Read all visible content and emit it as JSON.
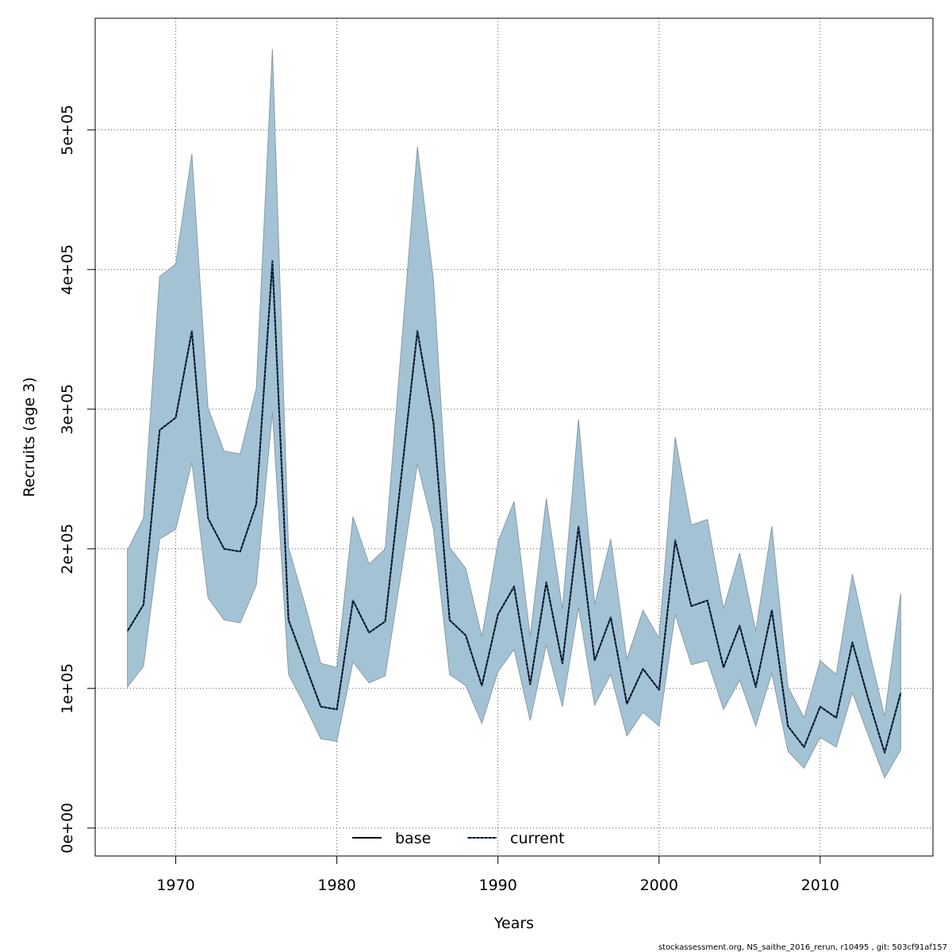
{
  "chart_data": {
    "type": "area",
    "xlabel": "Years",
    "ylabel": "Recruits (age 3)",
    "xlim": [
      1965,
      2017
    ],
    "ylim": [
      -20000,
      580000
    ],
    "grid": true,
    "x_ticks": [
      {
        "value": 1970,
        "label": "1970"
      },
      {
        "value": 1980,
        "label": "1980"
      },
      {
        "value": 1990,
        "label": "1990"
      },
      {
        "value": 2000,
        "label": "2000"
      },
      {
        "value": 2010,
        "label": "2010"
      }
    ],
    "y_ticks": [
      {
        "value": 0,
        "label": "0e+00"
      },
      {
        "value": 100000,
        "label": "1e+05"
      },
      {
        "value": 200000,
        "label": "2e+05"
      },
      {
        "value": 300000,
        "label": "3e+05"
      },
      {
        "value": 400000,
        "label": "4e+05"
      },
      {
        "value": 500000,
        "label": "5e+05"
      }
    ],
    "x": [
      1967,
      1968,
      1969,
      1970,
      1971,
      1972,
      1973,
      1974,
      1975,
      1976,
      1977,
      1978,
      1979,
      1980,
      1981,
      1982,
      1983,
      1984,
      1985,
      1986,
      1987,
      1988,
      1989,
      1990,
      1991,
      1992,
      1993,
      1994,
      1995,
      1996,
      1997,
      1998,
      1999,
      2000,
      2001,
      2002,
      2003,
      2004,
      2005,
      2006,
      2007,
      2008,
      2009,
      2010,
      2011,
      2012,
      2013,
      2014,
      2015
    ],
    "band": {
      "color": "#a3c3d5",
      "lower": [
        101000,
        116000,
        207000,
        214000,
        262000,
        165000,
        149000,
        147000,
        174000,
        298000,
        110000,
        88000,
        64000,
        62000,
        119000,
        104000,
        109000,
        183000,
        261000,
        214000,
        110000,
        102000,
        75000,
        112000,
        128000,
        77000,
        131000,
        87000,
        158000,
        88000,
        110000,
        66000,
        83000,
        73000,
        153000,
        117000,
        120000,
        85000,
        106000,
        73000,
        111000,
        55000,
        43000,
        65000,
        58000,
        97000,
        66000,
        36000,
        56000
      ],
      "upper": [
        199000,
        222000,
        395000,
        404000,
        483000,
        301000,
        270000,
        268000,
        315000,
        558000,
        201000,
        161000,
        118000,
        115000,
        223000,
        189000,
        200000,
        344000,
        488000,
        392000,
        201000,
        186000,
        137000,
        205000,
        234000,
        137000,
        236000,
        157000,
        293000,
        160000,
        207000,
        121000,
        156000,
        136000,
        280000,
        217000,
        221000,
        157000,
        197000,
        141000,
        216000,
        101000,
        79000,
        120000,
        110000,
        182000,
        129000,
        80000,
        168000
      ]
    },
    "series": [
      {
        "name": "base",
        "style": "solid",
        "color": "#000000",
        "values": [
          141000,
          160000,
          285000,
          294000,
          356000,
          222000,
          200000,
          198000,
          232000,
          406000,
          149000,
          118000,
          87000,
          85000,
          163000,
          140000,
          148000,
          252000,
          356000,
          290000,
          149000,
          138000,
          102000,
          153000,
          173000,
          103000,
          176000,
          118000,
          216000,
          120000,
          151000,
          89000,
          114000,
          99000,
          206000,
          159000,
          163000,
          115000,
          145000,
          101000,
          156000,
          73000,
          58000,
          87000,
          79000,
          133000,
          92000,
          54000,
          97000
        ]
      },
      {
        "name": "current",
        "style": "dotted",
        "color": "#2a5b8a",
        "values": [
          141000,
          160000,
          285000,
          294000,
          356000,
          222000,
          200000,
          198000,
          232000,
          406000,
          149000,
          118000,
          87000,
          85000,
          163000,
          140000,
          148000,
          252000,
          356000,
          290000,
          149000,
          138000,
          102000,
          153000,
          173000,
          103000,
          176000,
          118000,
          216000,
          120000,
          151000,
          89000,
          114000,
          99000,
          206000,
          159000,
          163000,
          115000,
          145000,
          101000,
          156000,
          73000,
          58000,
          87000,
          79000,
          133000,
          92000,
          54000,
          97000
        ]
      }
    ],
    "legend": {
      "position": "bottom-center"
    }
  },
  "footer": {
    "text": "stockassessment.org, NS_saithe_2016_rerun, r10495 , git: 503cf91af157"
  }
}
